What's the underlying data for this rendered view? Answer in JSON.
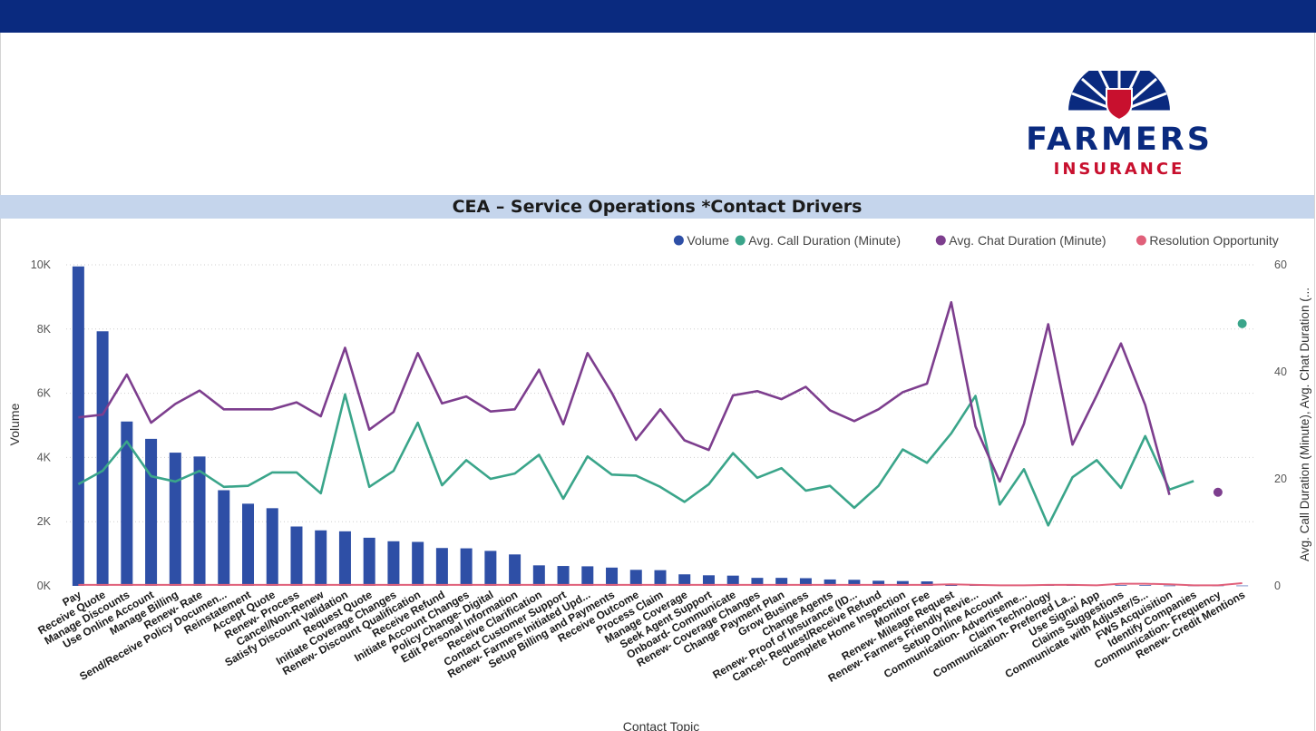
{
  "logo": {
    "word1": "FARMERS",
    "word2": "INSURANCE",
    "brand_navy": "#0a2a7f",
    "brand_red": "#c8102e"
  },
  "colors": {
    "top_bar": "#0a2a7f",
    "title_band": "#c5d5ec",
    "volume": "#2e4fa6",
    "call": "#3aa58a",
    "chat": "#7d3e8e",
    "resolution": "#e0607a"
  },
  "page_title": "CEA – Service Operations *Contact Drivers",
  "chart_data": {
    "type": "bar",
    "title": "CEA – Service Operations *Contact Drivers",
    "xlabel": "Contact Topic",
    "ylabel": "Volume",
    "y2label": "Avg. Call Duration (Minute), Avg. Chat Duration (...",
    "ylim": [
      0,
      10000
    ],
    "y2lim": [
      0,
      60
    ],
    "y_ticks": [
      "0K",
      "2K",
      "4K",
      "6K",
      "8K",
      "10K"
    ],
    "y2_ticks": [
      "0",
      "20",
      "40",
      "60"
    ],
    "legend_position": "top-right",
    "grid": true,
    "categories": [
      "Pay",
      "Receive Quote",
      "Manage Discounts",
      "Use Online Account",
      "Manage Billing",
      "Renew- Rate",
      "Send/Receive Policy Documen...",
      "Reinstatement",
      "Accept Quote",
      "Renew- Process",
      "Cancel/Non-Renew",
      "Satisfy Discount Validation",
      "Request Quote",
      "Initiate Coverage Changes",
      "Renew- Discount Qualification",
      "Receive Refund",
      "Initiate Account Changes",
      "Policy Change- Digital",
      "Edit Personal Information",
      "Receive Clarification",
      "Contact Customer Support",
      "Renew- Farmers Initiated Upd...",
      "Setup Billing and Payments",
      "Receive Outcome",
      "Process Claim",
      "Manage Coverage",
      "Seek Agent Support",
      "Onboard- Communicate",
      "Renew- Coverage Changes",
      "Change Payment Plan",
      "Grow Business",
      "Change Agents",
      "Renew- Proof of Insurance (ID...",
      "Cancel- Request/Receive Refund",
      "Complete Home Inspection",
      "Monitor Fee",
      "Renew- Mileage Request",
      "Renew- Farmers Friendly Revie...",
      "Setup Online Account",
      "Communication- Advertiseme...",
      "Claim Technology",
      "Communication- Preferred La...",
      "Use Signal App",
      "Claims Suggestions",
      "Communicate with Adjuster/S...",
      "FWS Acquisition",
      "Identify Companies",
      "Communication- Frequency",
      "Renew- Credit Mentions"
    ],
    "series": [
      {
        "name": "Volume",
        "axis": "left",
        "kind": "bar",
        "values": [
          9950,
          7930,
          5120,
          4580,
          4150,
          4030,
          2980,
          2560,
          2420,
          1850,
          1730,
          1700,
          1500,
          1390,
          1370,
          1180,
          1170,
          1090,
          980,
          640,
          620,
          610,
          570,
          500,
          490,
          360,
          330,
          320,
          250,
          250,
          240,
          200,
          190,
          160,
          150,
          140,
          60,
          50,
          40,
          30,
          30,
          30,
          20,
          20,
          20,
          10,
          10,
          10,
          10
        ]
      },
      {
        "name": "Avg. Call Duration (Minute)",
        "axis": "right",
        "kind": "line",
        "values": [
          19,
          21.5,
          27,
          20.5,
          19.5,
          21.5,
          18.5,
          18.7,
          21.2,
          21.2,
          17.3,
          35.8,
          18.5,
          21.5,
          30.5,
          18.8,
          23.5,
          20,
          21,
          24.5,
          16.3,
          24.2,
          20.8,
          20.6,
          18.5,
          15.7,
          19,
          24.8,
          20.2,
          22,
          17.8,
          18.7,
          14.6,
          18.7,
          25.5,
          23,
          28.5,
          35.5,
          15.2,
          21.8,
          11.3,
          20.3,
          23.5,
          18.3,
          28,
          18,
          19.6,
          null,
          49
        ]
      },
      {
        "name": "Avg. Chat Duration (Minute)",
        "axis": "right",
        "kind": "line",
        "values": [
          31.5,
          32,
          39.5,
          30.5,
          34,
          36.5,
          33,
          33,
          33,
          34.3,
          31.7,
          44.5,
          29.2,
          32.5,
          43.5,
          34.1,
          35.4,
          32.6,
          33,
          40.4,
          30.2,
          43.5,
          36.1,
          27.3,
          33,
          27.2,
          25.4,
          35.6,
          36.4,
          34.9,
          37.2,
          32.8,
          30.8,
          33,
          36.2,
          37.8,
          53,
          29.8,
          19.5,
          30.3,
          48.9,
          26.4,
          35.6,
          45.3,
          33.8,
          17,
          null,
          17.5,
          null
        ]
      },
      {
        "name": "Resolution Opportunity",
        "axis": "right",
        "kind": "line",
        "values": [
          0.2,
          0.2,
          0.2,
          0.2,
          0.2,
          0.2,
          0.2,
          0.2,
          0.2,
          0.2,
          0.2,
          0.2,
          0.2,
          0.2,
          0.2,
          0.2,
          0.2,
          0.2,
          0.2,
          0.2,
          0.2,
          0.2,
          0.2,
          0.2,
          0.2,
          0.2,
          0.2,
          0.2,
          0.2,
          0.2,
          0.2,
          0.2,
          0.2,
          0.2,
          0.2,
          0.2,
          0.3,
          0.2,
          0.1,
          0.1,
          0.2,
          0.2,
          0.1,
          0.4,
          0.4,
          0.3,
          0.1,
          0.1,
          0.5
        ]
      }
    ]
  }
}
